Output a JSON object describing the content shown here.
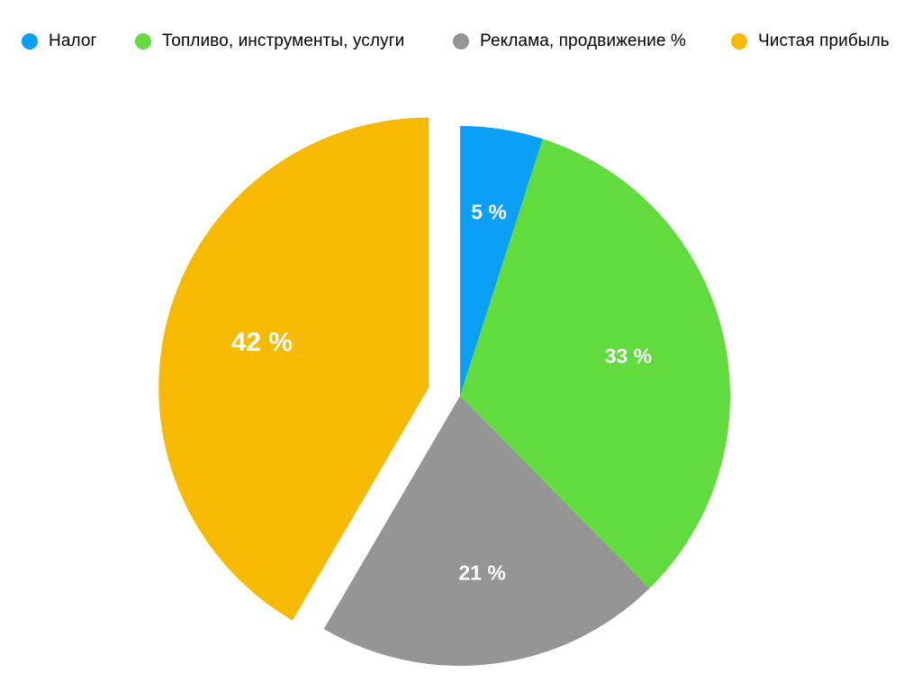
{
  "chart_data": {
    "type": "pie",
    "categories": [
      "Налог",
      "Топливо, инструменты, услуги",
      "Реклама, продвижение %",
      "Чистая прибыль"
    ],
    "values": [
      5,
      33,
      21,
      42
    ],
    "labels": [
      "5 %",
      "33 %",
      "21 %",
      "42 %"
    ],
    "colors": [
      "#0BA0F7",
      "#62DB3E",
      "#959595",
      "#F7BA03"
    ],
    "exploded": [
      false,
      false,
      false,
      true
    ],
    "start_angle": "12 o'clock",
    "direction": "clockwise",
    "legend_position": "top"
  }
}
